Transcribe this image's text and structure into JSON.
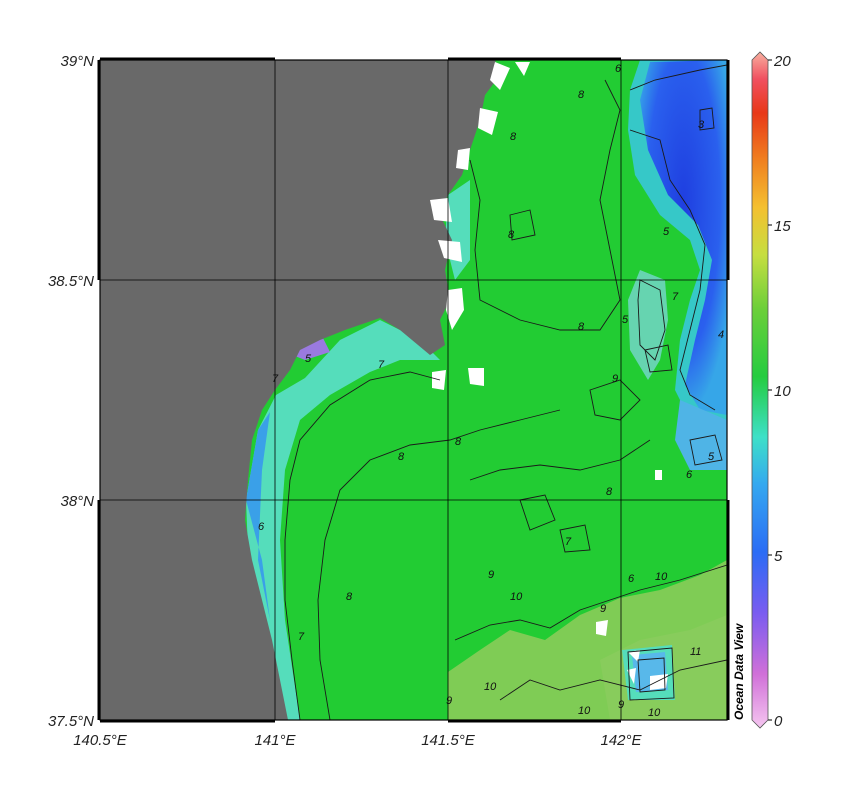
{
  "map": {
    "lat_ticks": [
      "39°N",
      "38.5°N",
      "38°N",
      "37.5°N"
    ],
    "lon_ticks": [
      "140.5°E",
      "141°E",
      "141.5°E",
      "142°E"
    ],
    "extent": {
      "lon_min": 140.5,
      "lon_max": 142.3,
      "lat_min": 37.5,
      "lat_max": 39.0
    },
    "gridlines": true
  },
  "colorbar": {
    "ticks": [
      "20",
      "15",
      "10",
      "5",
      "0"
    ],
    "min": 0,
    "max": 20
  },
  "contour_labels": [
    "8",
    "8",
    "8",
    "8",
    "8",
    "8",
    "8",
    "8",
    "7",
    "7",
    "7",
    "7",
    "7",
    "6",
    "6",
    "6",
    "5",
    "5",
    "5",
    "5",
    "4",
    "3",
    "9",
    "9",
    "9",
    "9",
    "10",
    "10",
    "10",
    "10",
    "10",
    "11",
    "9",
    "6"
  ],
  "watermark": "Ocean Data View",
  "colors": {
    "land": "#696969",
    "ocean_base": "#22cc33",
    "ocean_warm": "#7fcc55",
    "coastal_cyan": "#55ddbb",
    "cold_blue": "#2255ee"
  }
}
